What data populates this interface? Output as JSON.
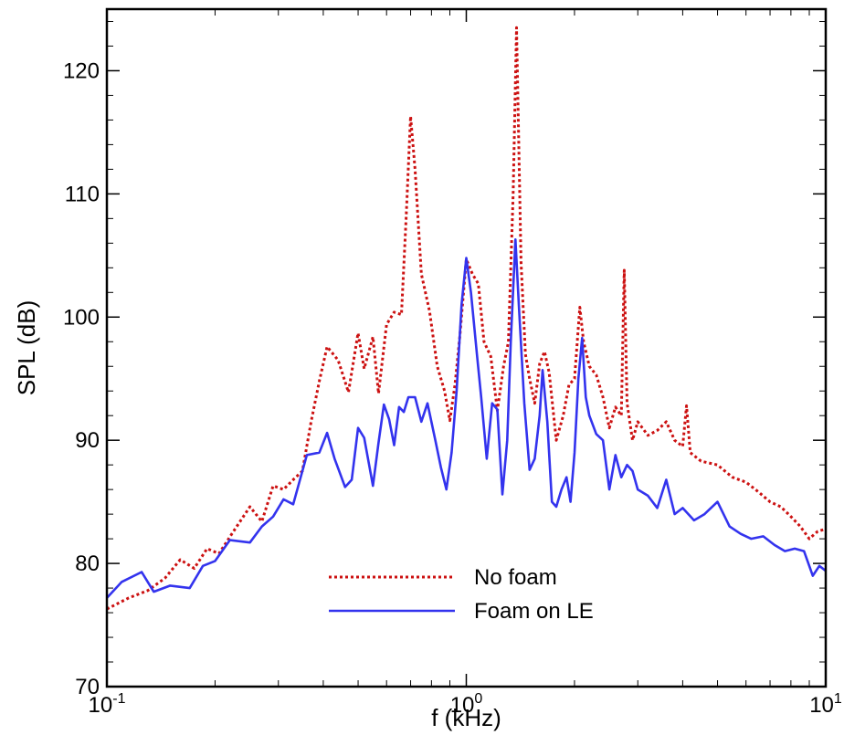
{
  "chart_data": {
    "type": "line",
    "xlabel": "f (kHz)",
    "ylabel": "SPL (dB)",
    "x_scale": "log",
    "xlim": [
      0.1,
      10
    ],
    "ylim": [
      70,
      125
    ],
    "x_ticks": [
      {
        "value": 0.1,
        "base": "10",
        "exp": "-1"
      },
      {
        "value": 1,
        "base": "10",
        "exp": "0"
      },
      {
        "value": 10,
        "base": "10",
        "exp": "1"
      }
    ],
    "y_ticks": [
      {
        "value": 70,
        "label": "70"
      },
      {
        "value": 80,
        "label": "80"
      },
      {
        "value": 90,
        "label": "90"
      },
      {
        "value": 100,
        "label": "100"
      },
      {
        "value": 110,
        "label": "110"
      },
      {
        "value": 120,
        "label": "120"
      }
    ],
    "grid": false,
    "legend_position": "bottom-center",
    "series": [
      {
        "name": "No foam",
        "color": "#cc1111",
        "style": "dotted",
        "points": [
          [
            0.1,
            76.3
          ],
          [
            0.115,
            77.2
          ],
          [
            0.13,
            77.8
          ],
          [
            0.145,
            78.8
          ],
          [
            0.16,
            80.3
          ],
          [
            0.175,
            79.6
          ],
          [
            0.19,
            81.2
          ],
          [
            0.205,
            80.8
          ],
          [
            0.225,
            82.6
          ],
          [
            0.25,
            84.6
          ],
          [
            0.27,
            83.4
          ],
          [
            0.29,
            86.3
          ],
          [
            0.31,
            86.0
          ],
          [
            0.33,
            86.8
          ],
          [
            0.35,
            87.5
          ],
          [
            0.37,
            91.5
          ],
          [
            0.39,
            94.8
          ],
          [
            0.41,
            97.6
          ],
          [
            0.44,
            96.5
          ],
          [
            0.47,
            93.9
          ],
          [
            0.5,
            98.7
          ],
          [
            0.52,
            95.8
          ],
          [
            0.55,
            98.4
          ],
          [
            0.57,
            93.8
          ],
          [
            0.6,
            99.4
          ],
          [
            0.63,
            100.4
          ],
          [
            0.66,
            100.2
          ],
          [
            0.68,
            108.0
          ],
          [
            0.7,
            116.3
          ],
          [
            0.72,
            112.0
          ],
          [
            0.75,
            103.5
          ],
          [
            0.79,
            100.5
          ],
          [
            0.83,
            96.0
          ],
          [
            0.87,
            94.0
          ],
          [
            0.9,
            91.6
          ],
          [
            0.93,
            94.5
          ],
          [
            0.96,
            98.5
          ],
          [
            1.0,
            104.7
          ],
          [
            1.04,
            103.5
          ],
          [
            1.08,
            102.7
          ],
          [
            1.12,
            98.0
          ],
          [
            1.17,
            96.8
          ],
          [
            1.22,
            92.4
          ],
          [
            1.27,
            96.0
          ],
          [
            1.31,
            98.0
          ],
          [
            1.35,
            110.0
          ],
          [
            1.38,
            123.5
          ],
          [
            1.42,
            104.5
          ],
          [
            1.46,
            97.0
          ],
          [
            1.5,
            95.0
          ],
          [
            1.55,
            93.0
          ],
          [
            1.6,
            96.2
          ],
          [
            1.65,
            97.2
          ],
          [
            1.7,
            95.5
          ],
          [
            1.78,
            90.0
          ],
          [
            1.86,
            92.0
          ],
          [
            1.93,
            94.5
          ],
          [
            2.0,
            95.0
          ],
          [
            2.07,
            100.8
          ],
          [
            2.12,
            98.0
          ],
          [
            2.2,
            96.0
          ],
          [
            2.3,
            95.3
          ],
          [
            2.4,
            93.5
          ],
          [
            2.5,
            91.0
          ],
          [
            2.6,
            92.7
          ],
          [
            2.7,
            92.0
          ],
          [
            2.75,
            103.8
          ],
          [
            2.8,
            93.0
          ],
          [
            2.9,
            90.0
          ],
          [
            3.0,
            91.5
          ],
          [
            3.2,
            90.4
          ],
          [
            3.4,
            90.8
          ],
          [
            3.6,
            91.5
          ],
          [
            3.8,
            90.0
          ],
          [
            4.0,
            89.5
          ],
          [
            4.1,
            92.8
          ],
          [
            4.2,
            89.0
          ],
          [
            4.5,
            88.3
          ],
          [
            5.0,
            88.0
          ],
          [
            5.5,
            87.0
          ],
          [
            6.0,
            86.6
          ],
          [
            6.5,
            85.8
          ],
          [
            7.0,
            85.0
          ],
          [
            7.5,
            84.6
          ],
          [
            8.0,
            83.8
          ],
          [
            8.5,
            83.0
          ],
          [
            9.0,
            82.0
          ],
          [
            9.5,
            82.6
          ],
          [
            10.0,
            82.8
          ]
        ]
      },
      {
        "name": "Foam on LE",
        "color": "#3333ee",
        "style": "solid",
        "points": [
          [
            0.1,
            77.2
          ],
          [
            0.11,
            78.5
          ],
          [
            0.125,
            79.3
          ],
          [
            0.135,
            77.7
          ],
          [
            0.15,
            78.2
          ],
          [
            0.17,
            78.0
          ],
          [
            0.185,
            79.8
          ],
          [
            0.2,
            80.2
          ],
          [
            0.22,
            81.9
          ],
          [
            0.25,
            81.7
          ],
          [
            0.27,
            83.0
          ],
          [
            0.29,
            83.8
          ],
          [
            0.31,
            85.2
          ],
          [
            0.33,
            84.8
          ],
          [
            0.36,
            88.8
          ],
          [
            0.39,
            89.0
          ],
          [
            0.41,
            90.6
          ],
          [
            0.43,
            88.5
          ],
          [
            0.46,
            86.2
          ],
          [
            0.48,
            86.8
          ],
          [
            0.5,
            91.0
          ],
          [
            0.52,
            90.2
          ],
          [
            0.55,
            86.3
          ],
          [
            0.57,
            89.8
          ],
          [
            0.59,
            92.9
          ],
          [
            0.61,
            91.7
          ],
          [
            0.63,
            89.6
          ],
          [
            0.65,
            92.7
          ],
          [
            0.67,
            92.3
          ],
          [
            0.69,
            93.5
          ],
          [
            0.72,
            93.5
          ],
          [
            0.75,
            91.5
          ],
          [
            0.78,
            93.0
          ],
          [
            0.82,
            90.0
          ],
          [
            0.85,
            87.8
          ],
          [
            0.88,
            86.0
          ],
          [
            0.91,
            89.0
          ],
          [
            0.94,
            94.0
          ],
          [
            0.97,
            101.0
          ],
          [
            1.0,
            104.8
          ],
          [
            1.03,
            102.0
          ],
          [
            1.07,
            97.0
          ],
          [
            1.1,
            93.5
          ],
          [
            1.14,
            88.5
          ],
          [
            1.18,
            93.0
          ],
          [
            1.22,
            92.5
          ],
          [
            1.26,
            85.6
          ],
          [
            1.3,
            90.0
          ],
          [
            1.33,
            98.0
          ],
          [
            1.37,
            106.3
          ],
          [
            1.4,
            101.0
          ],
          [
            1.45,
            93.0
          ],
          [
            1.5,
            87.6
          ],
          [
            1.55,
            88.5
          ],
          [
            1.6,
            92.0
          ],
          [
            1.63,
            95.7
          ],
          [
            1.68,
            91.5
          ],
          [
            1.73,
            85.0
          ],
          [
            1.78,
            84.6
          ],
          [
            1.84,
            86.0
          ],
          [
            1.9,
            87.0
          ],
          [
            1.95,
            85.0
          ],
          [
            2.0,
            89.0
          ],
          [
            2.05,
            95.0
          ],
          [
            2.1,
            98.3
          ],
          [
            2.15,
            93.5
          ],
          [
            2.2,
            92.0
          ],
          [
            2.3,
            90.5
          ],
          [
            2.4,
            90.0
          ],
          [
            2.5,
            86.0
          ],
          [
            2.6,
            88.8
          ],
          [
            2.7,
            87.0
          ],
          [
            2.8,
            88.0
          ],
          [
            2.9,
            87.5
          ],
          [
            3.0,
            86.0
          ],
          [
            3.2,
            85.5
          ],
          [
            3.4,
            84.5
          ],
          [
            3.6,
            86.8
          ],
          [
            3.8,
            84.0
          ],
          [
            4.0,
            84.5
          ],
          [
            4.3,
            83.5
          ],
          [
            4.6,
            84.0
          ],
          [
            5.0,
            85.0
          ],
          [
            5.4,
            83.0
          ],
          [
            5.8,
            82.4
          ],
          [
            6.2,
            82.0
          ],
          [
            6.7,
            82.2
          ],
          [
            7.2,
            81.5
          ],
          [
            7.7,
            81.0
          ],
          [
            8.2,
            81.2
          ],
          [
            8.7,
            81.0
          ],
          [
            9.2,
            79.0
          ],
          [
            9.6,
            79.8
          ],
          [
            10.0,
            79.4
          ]
        ]
      }
    ]
  }
}
